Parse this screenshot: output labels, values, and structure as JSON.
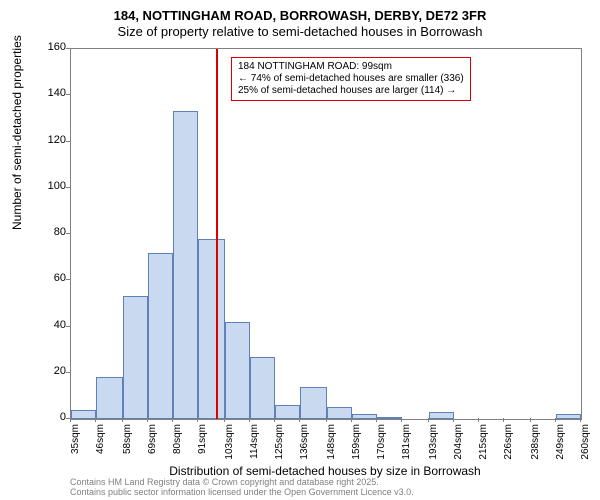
{
  "title_line1": "184, NOTTINGHAM ROAD, BORROWASH, DERBY, DE72 3FR",
  "title_line2": "Size of property relative to semi-detached houses in Borrowash",
  "y_axis_label": "Number of semi-detached properties",
  "x_axis_label": "Distribution of semi-detached houses by size in Borrowash",
  "attribution_line1": "Contains HM Land Registry data © Crown copyright and database right 2025.",
  "attribution_line2": "Contains public sector information licensed under the Open Government Licence v3.0.",
  "chart": {
    "type": "histogram",
    "ylim": [
      0,
      160
    ],
    "ytick_step": 20,
    "background_color": "#ffffff",
    "border_color": "#808080",
    "bar_fill": "#c9d9f0",
    "bar_stroke": "#6080b8",
    "reference_line_color": "#dd0000",
    "reference_line_x": 99,
    "xtick_labels": [
      "35sqm",
      "46sqm",
      "58sqm",
      "69sqm",
      "80sqm",
      "91sqm",
      "103sqm",
      "114sqm",
      "125sqm",
      "136sqm",
      "148sqm",
      "159sqm",
      "170sqm",
      "181sqm",
      "193sqm",
      "204sqm",
      "215sqm",
      "226sqm",
      "238sqm",
      "249sqm",
      "260sqm"
    ],
    "xtick_values": [
      35,
      46,
      58,
      69,
      80,
      91,
      103,
      114,
      125,
      136,
      148,
      159,
      170,
      181,
      193,
      204,
      215,
      226,
      238,
      249,
      260
    ],
    "bars": [
      {
        "x_start": 35,
        "x_end": 46,
        "value": 4
      },
      {
        "x_start": 46,
        "x_end": 58,
        "value": 18
      },
      {
        "x_start": 58,
        "x_end": 69,
        "value": 53
      },
      {
        "x_start": 69,
        "x_end": 80,
        "value": 72
      },
      {
        "x_start": 80,
        "x_end": 91,
        "value": 133
      },
      {
        "x_start": 91,
        "x_end": 103,
        "value": 78
      },
      {
        "x_start": 103,
        "x_end": 114,
        "value": 42
      },
      {
        "x_start": 114,
        "x_end": 125,
        "value": 27
      },
      {
        "x_start": 125,
        "x_end": 136,
        "value": 6
      },
      {
        "x_start": 136,
        "x_end": 148,
        "value": 14
      },
      {
        "x_start": 148,
        "x_end": 159,
        "value": 5
      },
      {
        "x_start": 159,
        "x_end": 170,
        "value": 2
      },
      {
        "x_start": 170,
        "x_end": 181,
        "value": 1
      },
      {
        "x_start": 181,
        "x_end": 193,
        "value": 0
      },
      {
        "x_start": 193,
        "x_end": 204,
        "value": 3
      },
      {
        "x_start": 204,
        "x_end": 215,
        "value": 0
      },
      {
        "x_start": 215,
        "x_end": 226,
        "value": 0
      },
      {
        "x_start": 226,
        "x_end": 238,
        "value": 0
      },
      {
        "x_start": 238,
        "x_end": 249,
        "value": 0
      },
      {
        "x_start": 249,
        "x_end": 260,
        "value": 2
      }
    ]
  },
  "annotation": {
    "line1": "184 NOTTINGHAM ROAD: 99sqm",
    "line2": "← 74% of semi-detached houses are smaller (336)",
    "line3": "25% of semi-detached houses are larger (114) →",
    "box_border_color": "#dd0000"
  }
}
